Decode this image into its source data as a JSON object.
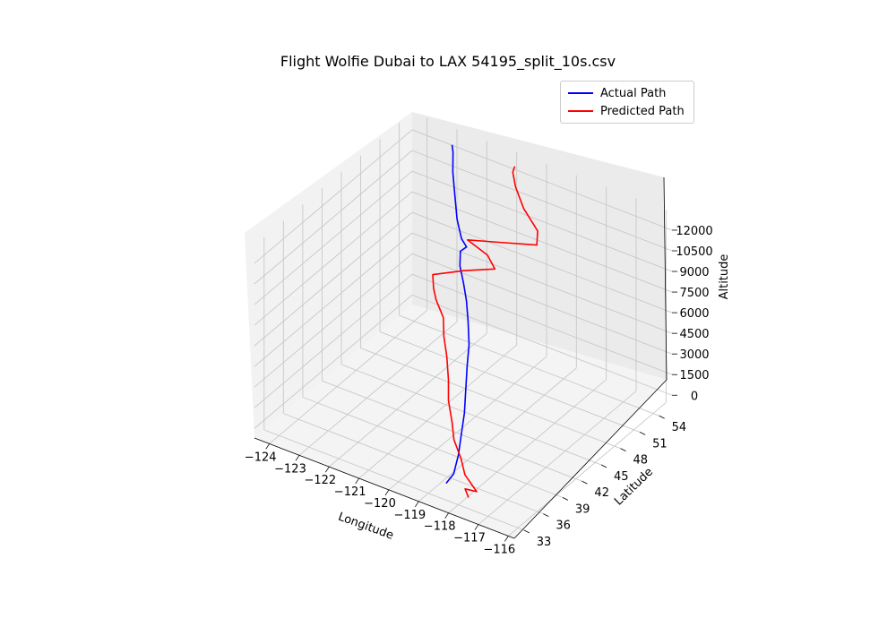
{
  "chart_data": {
    "type": "line",
    "projection": "3d",
    "title": "Flight Wolfie Dubai to LAX 54195_split_10s.csv",
    "xlabel": "Longitude",
    "ylabel": "Latitude",
    "zlabel": "Altitude",
    "xlim": [
      -124.5,
      -115.8
    ],
    "ylim": [
      31.5,
      56
    ],
    "zlim": [
      -700,
      13300
    ],
    "x_ticks": [
      "−124",
      "−123",
      "−122",
      "−121",
      "−120",
      "−119",
      "−118",
      "−117",
      "−116"
    ],
    "y_ticks": [
      "33",
      "36",
      "39",
      "42",
      "45",
      "48",
      "51",
      "54"
    ],
    "z_ticks": [
      "0",
      "1500",
      "3000",
      "4500",
      "6000",
      "7500",
      "9000",
      "10500",
      "12000"
    ],
    "grid": true,
    "legend_position": "upper-right",
    "series": [
      {
        "name": "Actual Path",
        "color": "#0000ff",
        "points": [
          [
            -118.6,
            33.9,
            0
          ],
          [
            -118.5,
            34.6,
            500
          ],
          [
            -118.6,
            35.8,
            1300
          ],
          [
            -118.8,
            37.2,
            2100
          ],
          [
            -119.0,
            38.6,
            2900
          ],
          [
            -119.3,
            40.2,
            3700
          ],
          [
            -119.6,
            41.8,
            4500
          ],
          [
            -119.9,
            43.5,
            5200
          ],
          [
            -120.3,
            45.2,
            5900
          ],
          [
            -120.7,
            46.8,
            6400
          ],
          [
            -121.1,
            48.2,
            6800
          ],
          [
            -121.5,
            49.5,
            7200
          ],
          [
            -121.7,
            50.5,
            7700
          ],
          [
            -121.6,
            51.0,
            7900
          ],
          [
            -121.9,
            51.6,
            8000
          ],
          [
            -122.2,
            52.3,
            8900
          ],
          [
            -122.4,
            52.9,
            10200
          ],
          [
            -122.6,
            53.5,
            11500
          ],
          [
            -122.7,
            54.0,
            12700
          ],
          [
            -122.8,
            54.3,
            13000
          ]
        ]
      },
      {
        "name": "Predicted Path",
        "color": "#ff0000",
        "points": [
          [
            -117.7,
            33.2,
            0
          ],
          [
            -117.9,
            33.6,
            300
          ],
          [
            -117.6,
            34.0,
            200
          ],
          [
            -118.1,
            34.5,
            800
          ],
          [
            -118.4,
            35.3,
            1400
          ],
          [
            -118.9,
            36.5,
            1900
          ],
          [
            -119.2,
            37.6,
            2500
          ],
          [
            -119.6,
            38.9,
            3200
          ],
          [
            -119.9,
            40.3,
            3900
          ],
          [
            -120.3,
            41.9,
            4600
          ],
          [
            -120.7,
            43.3,
            5200
          ],
          [
            -121.0,
            44.6,
            5800
          ],
          [
            -121.5,
            45.8,
            6200
          ],
          [
            -121.8,
            46.8,
            6400
          ],
          [
            -122.0,
            47.6,
            6900
          ],
          [
            -121.1,
            48.2,
            7700
          ],
          [
            -120.2,
            48.9,
            8300
          ],
          [
            -120.6,
            49.6,
            8700
          ],
          [
            -121.4,
            50.2,
            8900
          ],
          [
            -120.5,
            50.9,
            9200
          ],
          [
            -119.4,
            51.7,
            9600
          ],
          [
            -119.5,
            52.3,
            10300
          ],
          [
            -120.1,
            52.9,
            11200
          ],
          [
            -120.5,
            53.5,
            12200
          ],
          [
            -120.7,
            54.0,
            12900
          ],
          [
            -120.7,
            54.3,
            13200
          ]
        ]
      }
    ]
  }
}
